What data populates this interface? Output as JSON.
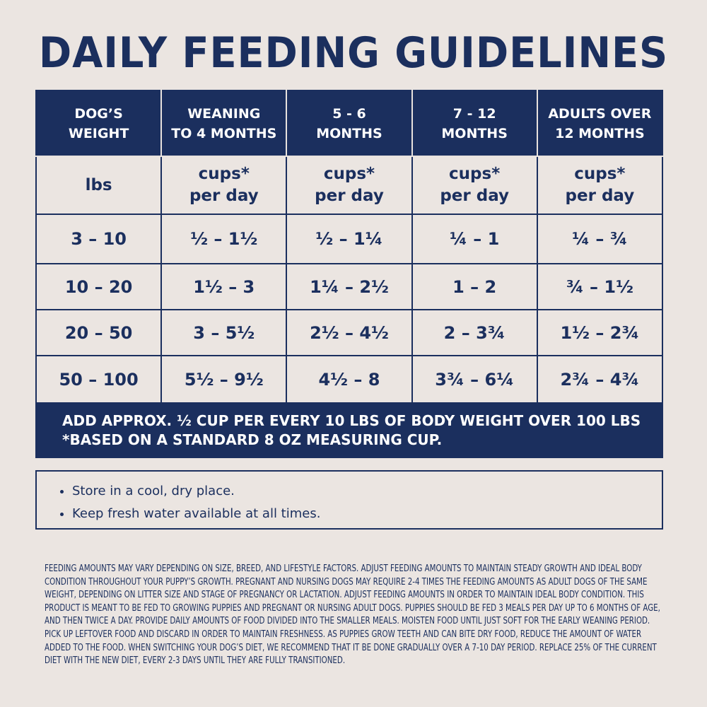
{
  "header": {
    "title": "DAILY FEEDING GUIDELINES"
  },
  "table": {
    "columns": [
      [
        "DOG’S",
        "WEIGHT"
      ],
      [
        "WEANING",
        "TO 4 MONTHS"
      ],
      [
        "5 - 6",
        "MONTHS"
      ],
      [
        "7 - 12",
        "MONTHS"
      ],
      [
        "ADULTS OVER",
        "12 MONTHS"
      ]
    ],
    "units": [
      [
        "lbs"
      ],
      [
        "cups*",
        "per day"
      ],
      [
        "cups*",
        "per day"
      ],
      [
        "cups*",
        "per day"
      ],
      [
        "cups*",
        "per day"
      ]
    ],
    "rows": [
      [
        "3 – 10",
        "½ – 1½",
        "½ – 1¼",
        "¼ – 1",
        "¼ – ¾"
      ],
      [
        "10 – 20",
        "1½ – 3",
        "1¼ – 2½",
        "1 – 2",
        "¾ – 1½"
      ],
      [
        "20 – 50",
        "3 – 5½",
        "2½ – 4½",
        "2 – 3¾",
        "1½ – 2¾"
      ],
      [
        "50 – 100",
        "5½ – 9½",
        "4½ – 8",
        "3¾ – 6¼",
        "2¾ – 4¾"
      ]
    ],
    "footer": [
      "ADD APPROX. ½ CUP PER EVERY 10 LBS OF BODY WEIGHT OVER 100 LBS",
      "*BASED ON A STANDARD 8 OZ MEASURING CUP."
    ]
  },
  "tips": [
    "Store in a cool, dry place.",
    "Keep fresh water available at all times."
  ],
  "fine_print": "FEEDING AMOUNTS MAY VARY DEPENDING ON SIZE, BREED, AND LIFESTYLE FACTORS. ADJUST FEEDING AMOUNTS TO MAINTAIN STEADY GROWTH AND IDEAL BODY CONDITION THROUGHOUT YOUR PUPPY’S GROWTH. PREGNANT AND NURSING DOGS MAY REQUIRE 2-4 TIMES THE FEEDING AMOUNTS AS ADULT DOGS OF THE SAME WEIGHT, DEPENDING ON LITTER SIZE AND STAGE OF PREGNANCY OR LACTATION. ADJUST FEEDING AMOUNTS IN ORDER TO MAINTAIN IDEAL BODY CONDITION. THIS PRODUCT IS MEANT TO BE FED TO GROWING PUPPIES AND PREGNANT OR NURSING ADULT DOGS. PUPPIES SHOULD BE FED 3 MEALS PER DAY UP TO 6 MONTHS OF AGE, AND THEN TWICE A DAY. PROVIDE DAILY AMOUNTS OF FOOD DIVIDED INTO THE SMALLER MEALS. MOISTEN FOOD UNTIL JUST SOFT FOR THE EARLY WEANING PERIOD. PICK UP LEFTOVER FOOD AND DISCARD IN ORDER TO MAINTAIN FRESHNESS. AS PUPPIES GROW TEETH AND CAN BITE DRY FOOD, REDUCE THE AMOUNT OF WATER ADDED TO THE FOOD. WHEN SWITCHING YOUR DOG’S DIET, WE RECOMMEND THAT IT BE DONE GRADUALLY OVER A 7-10 DAY PERIOD. REPLACE 25% OF THE CURRENT DIET WITH THE NEW DIET, EVERY 2-3 DAYS UNTIL THEY ARE FULLY TRANSITIONED."
}
